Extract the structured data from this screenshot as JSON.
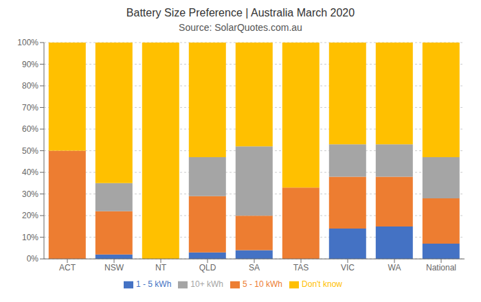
{
  "chart_data": {
    "type": "bar",
    "stacked": true,
    "title": "Battery Size Preference  |  Australia March 2020",
    "subtitle": "Source: SolarQuotes.com.au",
    "categories": [
      "ACT",
      "NSW",
      "NT",
      "QLD",
      "SA",
      "TAS",
      "VIC",
      "WA",
      "National"
    ],
    "series": [
      {
        "name": "1 - 5 kWh",
        "color": "#4472C4",
        "values": [
          0,
          2,
          0,
          3,
          4,
          0,
          14,
          15,
          7
        ]
      },
      {
        "name": "5 - 10 kWh",
        "color": "#ED7D31",
        "values": [
          50,
          20,
          0,
          26,
          16,
          33,
          24,
          23,
          21
        ]
      },
      {
        "name": "10+ kWh",
        "color": "#A5A5A5",
        "values": [
          0,
          13,
          0,
          18,
          32,
          0,
          15,
          15,
          19
        ]
      },
      {
        "name": "Don't know",
        "color": "#FFC000",
        "values": [
          50,
          65,
          100,
          53,
          48,
          67,
          47,
          47,
          53
        ]
      }
    ],
    "ylim": [
      0,
      100
    ],
    "yticks": [
      {
        "value": 0,
        "label": "0%"
      },
      {
        "value": 10,
        "label": "10%"
      },
      {
        "value": 20,
        "label": "20%"
      },
      {
        "value": 30,
        "label": "30%"
      },
      {
        "value": 40,
        "label": "40%"
      },
      {
        "value": 50,
        "label": "50%"
      },
      {
        "value": 60,
        "label": "60%"
      },
      {
        "value": 70,
        "label": "70%"
      },
      {
        "value": 80,
        "label": "80%"
      },
      {
        "value": 90,
        "label": "90%"
      },
      {
        "value": 100,
        "label": "100%"
      }
    ],
    "grid": true,
    "legend": "bottom"
  }
}
